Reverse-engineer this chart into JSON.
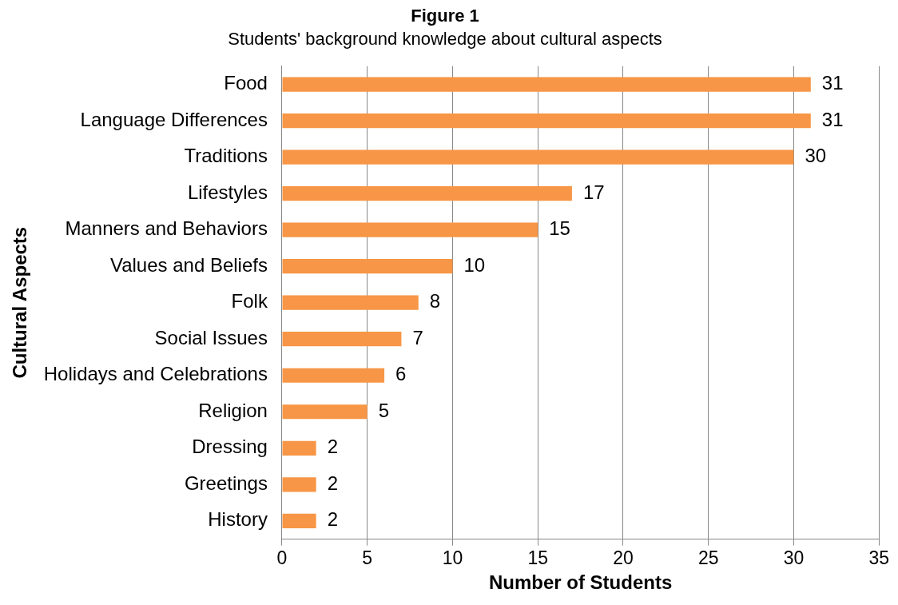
{
  "chart_data": {
    "type": "bar",
    "orientation": "horizontal",
    "title": "Figure 1",
    "subtitle": "Students' background knowledge about cultural aspects",
    "xlabel": "Number of Students",
    "ylabel": "Cultural Aspects",
    "categories": [
      "Food",
      "Language Differences",
      "Traditions",
      "Lifestyles",
      "Manners and Behaviors",
      "Values and Beliefs",
      "Folk",
      "Social Issues",
      "Holidays and Celebrations",
      "Religion",
      "Dressing",
      "Greetings",
      "History"
    ],
    "values": [
      31,
      31,
      30,
      17,
      15,
      10,
      8,
      7,
      6,
      5,
      2,
      2,
      2
    ],
    "color": "#f79646",
    "xlim": [
      0,
      35
    ],
    "xticks": [
      0,
      5,
      10,
      15,
      20,
      25,
      30,
      35
    ],
    "grid": "x",
    "legend": false,
    "data_labels": true
  }
}
